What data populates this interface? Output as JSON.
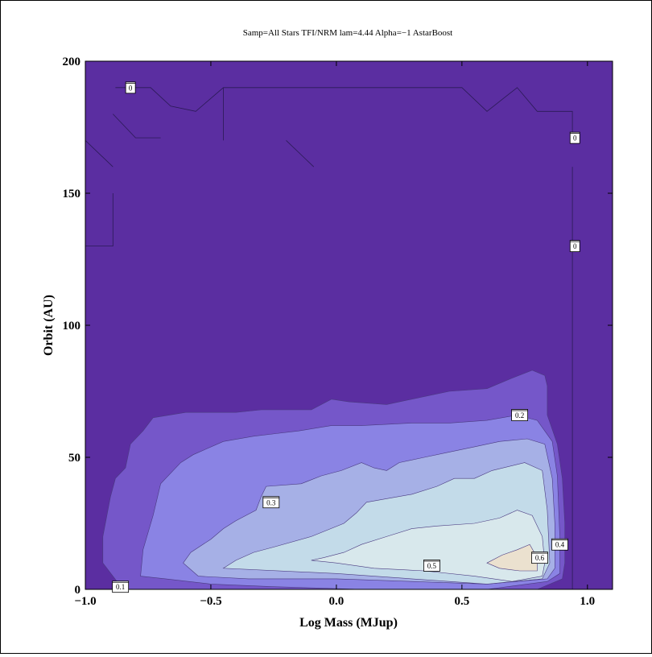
{
  "chart_data": {
    "type": "contour",
    "title": "Samp=All Stars TFI/NRM lam=4.44 Alpha=−1 AstarBoost",
    "xlabel": "Log Mass (MJup)",
    "ylabel": "Orbit (AU)",
    "xlim": [
      -1.0,
      1.1
    ],
    "ylim": [
      0,
      200
    ],
    "x_ticks": [
      {
        "value": -1.0,
        "label": "−1.0"
      },
      {
        "value": -0.5,
        "label": "−0.5"
      },
      {
        "value": 0.0,
        "label": "0.0"
      },
      {
        "value": 0.5,
        "label": "0.5"
      },
      {
        "value": 1.0,
        "label": "1.0"
      }
    ],
    "y_ticks": [
      {
        "value": 0,
        "label": "0"
      },
      {
        "value": 50,
        "label": "50"
      },
      {
        "value": 100,
        "label": "100"
      },
      {
        "value": 150,
        "label": "150"
      },
      {
        "value": 200,
        "label": "200"
      }
    ],
    "levels": [
      {
        "level": 0.1,
        "color": "#7557c9",
        "points": [
          [
            -0.89,
            5
          ],
          [
            -0.93,
            10
          ],
          [
            -0.93,
            20
          ],
          [
            -0.9,
            35
          ],
          [
            -0.88,
            42
          ],
          [
            -0.84,
            46
          ],
          [
            -0.82,
            55
          ],
          [
            -0.77,
            60
          ],
          [
            -0.73,
            65
          ],
          [
            -0.6,
            67
          ],
          [
            -0.4,
            67
          ],
          [
            -0.3,
            68
          ],
          [
            -0.2,
            68
          ],
          [
            -0.1,
            68
          ],
          [
            -0.02,
            72
          ],
          [
            0.05,
            71
          ],
          [
            0.2,
            70
          ],
          [
            0.3,
            72
          ],
          [
            0.45,
            75
          ],
          [
            0.6,
            76
          ],
          [
            0.7,
            80
          ],
          [
            0.78,
            83
          ],
          [
            0.83,
            81
          ],
          [
            0.84,
            77
          ],
          [
            0.84,
            66
          ],
          [
            0.88,
            55
          ],
          [
            0.9,
            42
          ],
          [
            0.91,
            25
          ],
          [
            0.91,
            10
          ],
          [
            0.9,
            4
          ],
          [
            0.8,
            0
          ],
          [
            -0.5,
            0
          ],
          [
            -0.85,
            0
          ]
        ]
      },
      {
        "level": 0.2,
        "color": "#8a83e4",
        "points": [
          [
            -0.78,
            5
          ],
          [
            -0.77,
            15
          ],
          [
            -0.73,
            28
          ],
          [
            -0.7,
            40
          ],
          [
            -0.62,
            48
          ],
          [
            -0.57,
            51
          ],
          [
            -0.45,
            56
          ],
          [
            -0.33,
            58
          ],
          [
            -0.24,
            59
          ],
          [
            -0.15,
            60
          ],
          [
            -0.02,
            62
          ],
          [
            0.1,
            62
          ],
          [
            0.3,
            63
          ],
          [
            0.45,
            63
          ],
          [
            0.6,
            64
          ],
          [
            0.72,
            66
          ],
          [
            0.8,
            64
          ],
          [
            0.86,
            56
          ],
          [
            0.88,
            43
          ],
          [
            0.89,
            20
          ],
          [
            0.89,
            6
          ],
          [
            0.84,
            3
          ],
          [
            0.6,
            0
          ],
          [
            0.1,
            0
          ],
          [
            -0.25,
            1
          ],
          [
            -0.5,
            2
          ],
          [
            -0.68,
            4
          ]
        ]
      },
      {
        "level": 0.3,
        "color": "#a6b0e6",
        "points": [
          [
            -0.55,
            5
          ],
          [
            -0.61,
            10
          ],
          [
            -0.58,
            14
          ],
          [
            -0.5,
            19
          ],
          [
            -0.45,
            23
          ],
          [
            -0.4,
            26
          ],
          [
            -0.32,
            30
          ],
          [
            -0.3,
            35
          ],
          [
            -0.28,
            39
          ],
          [
            -0.14,
            40
          ],
          [
            -0.06,
            43
          ],
          [
            0.02,
            45
          ],
          [
            0.1,
            48
          ],
          [
            0.15,
            46
          ],
          [
            0.2,
            45
          ],
          [
            0.25,
            48
          ],
          [
            0.35,
            50
          ],
          [
            0.45,
            52
          ],
          [
            0.55,
            54
          ],
          [
            0.65,
            56
          ],
          [
            0.76,
            57
          ],
          [
            0.83,
            55
          ],
          [
            0.86,
            42
          ],
          [
            0.87,
            25
          ],
          [
            0.87,
            8
          ],
          [
            0.84,
            4
          ],
          [
            0.6,
            2
          ],
          [
            0.3,
            3
          ],
          [
            0.0,
            4
          ],
          [
            -0.35,
            4
          ]
        ]
      },
      {
        "level": 0.4,
        "color": "#c3dbe9",
        "points": [
          [
            -0.45,
            8
          ],
          [
            -0.4,
            11
          ],
          [
            -0.33,
            14
          ],
          [
            -0.25,
            16
          ],
          [
            -0.1,
            20
          ],
          [
            0.03,
            25
          ],
          [
            0.08,
            29
          ],
          [
            0.12,
            33
          ],
          [
            0.3,
            36
          ],
          [
            0.4,
            39
          ],
          [
            0.47,
            42
          ],
          [
            0.55,
            42
          ],
          [
            0.62,
            45
          ],
          [
            0.75,
            48
          ],
          [
            0.82,
            45
          ],
          [
            0.84,
            30
          ],
          [
            0.85,
            10
          ],
          [
            0.82,
            4
          ],
          [
            0.6,
            2
          ],
          [
            0.3,
            4
          ],
          [
            0.0,
            6
          ]
        ]
      },
      {
        "level": 0.5,
        "color": "#d8e8ec",
        "points": [
          [
            -0.1,
            11
          ],
          [
            -0.05,
            12
          ],
          [
            0.03,
            14
          ],
          [
            0.1,
            17
          ],
          [
            0.2,
            20
          ],
          [
            0.3,
            23
          ],
          [
            0.4,
            24
          ],
          [
            0.55,
            25
          ],
          [
            0.65,
            27
          ],
          [
            0.72,
            30
          ],
          [
            0.78,
            28
          ],
          [
            0.82,
            20
          ],
          [
            0.83,
            10
          ],
          [
            0.82,
            5
          ],
          [
            0.7,
            3
          ],
          [
            0.55,
            5
          ],
          [
            0.35,
            7
          ],
          [
            0.15,
            8
          ],
          [
            0.0,
            10
          ]
        ]
      },
      {
        "level": 0.6,
        "color": "#ebe1cf",
        "points": [
          [
            0.6,
            10
          ],
          [
            0.66,
            13
          ],
          [
            0.72,
            15
          ],
          [
            0.77,
            17
          ],
          [
            0.8,
            12
          ],
          [
            0.8,
            7
          ],
          [
            0.73,
            7
          ],
          [
            0.65,
            8
          ]
        ]
      }
    ],
    "contour_labels": [
      {
        "text": "0",
        "x": -0.82,
        "y": 190
      },
      {
        "text": "0",
        "x": 0.95,
        "y": 171
      },
      {
        "text": "0",
        "x": 0.95,
        "y": 130
      },
      {
        "text": "0.2",
        "x": 0.73,
        "y": 66
      },
      {
        "text": "0.3",
        "x": -0.26,
        "y": 33
      },
      {
        "text": "0.5",
        "x": 0.38,
        "y": 9
      },
      {
        "text": "0.4",
        "x": 0.89,
        "y": 17
      },
      {
        "text": "0.6",
        "x": 0.81,
        "y": 12
      },
      {
        "text": "0.1",
        "x": -0.86,
        "y": 1
      }
    ],
    "zero_lines": [
      [
        [
          -0.88,
          190
        ],
        [
          -0.74,
          190
        ],
        [
          -0.66,
          183
        ],
        [
          -0.56,
          181
        ],
        [
          -0.45,
          190
        ],
        [
          -0.3,
          190
        ],
        [
          0.5,
          190
        ],
        [
          0.6,
          181
        ],
        [
          0.72,
          190
        ],
        [
          0.8,
          181
        ],
        [
          0.94,
          181
        ],
        [
          0.94,
          171
        ]
      ],
      [
        [
          -0.89,
          180
        ],
        [
          -0.8,
          171
        ],
        [
          -0.7,
          171
        ]
      ],
      [
        [
          -1.0,
          170
        ],
        [
          -0.89,
          160
        ]
      ],
      [
        [
          -0.89,
          150
        ],
        [
          -0.89,
          130
        ],
        [
          -1.0,
          130
        ]
      ],
      [
        [
          -0.45,
          190
        ],
        [
          -0.45,
          170
        ]
      ],
      [
        [
          -0.2,
          170
        ],
        [
          -0.09,
          160
        ]
      ],
      [
        [
          0.94,
          160
        ],
        [
          0.94,
          150
        ]
      ],
      [
        [
          0.94,
          150
        ],
        [
          0.94,
          0
        ]
      ]
    ],
    "background_color": "#5b2ea1",
    "grid": false
  }
}
